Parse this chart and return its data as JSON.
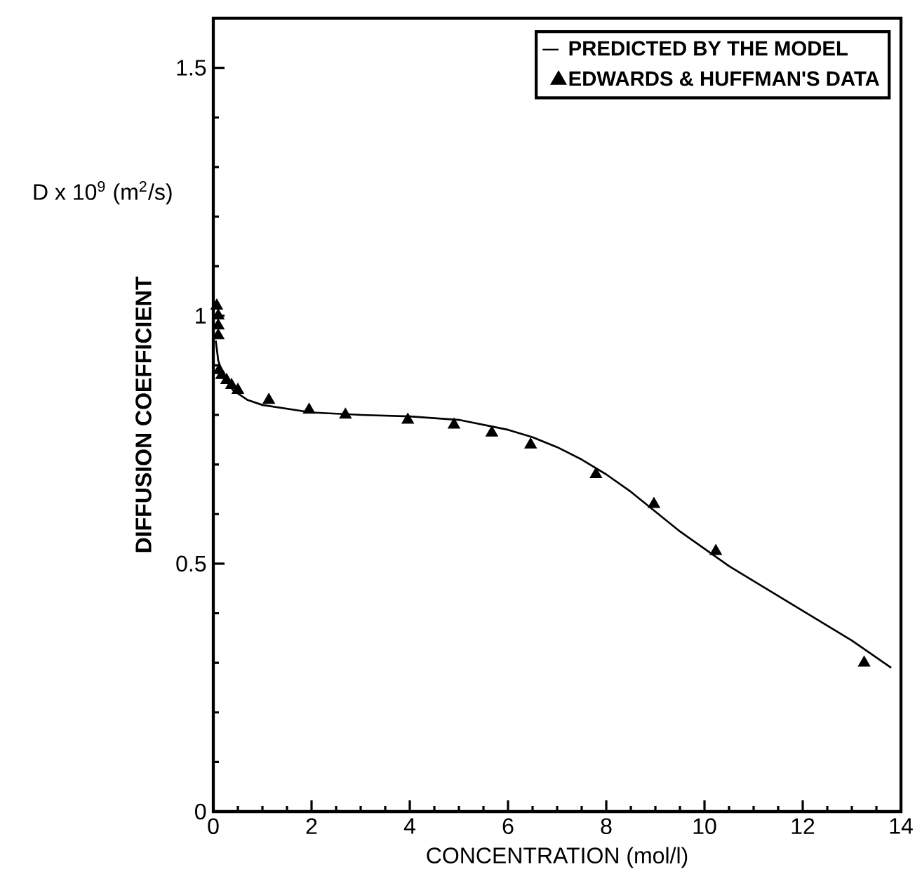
{
  "chart_data": {
    "type": "line",
    "xlabel": "CONCENTRATION   (mol/l)",
    "ylabel": "DIFFUSION COEFFICIENT",
    "annotations": [
      "D x 10$^{9}$ (m$^{2}$/s)"
    ],
    "xlim": [
      0,
      14
    ],
    "ylim": [
      0,
      1.6
    ],
    "xticks": [
      0,
      2,
      4,
      6,
      8,
      10,
      12,
      14
    ],
    "yticks": [
      0,
      0.5,
      1,
      1.5
    ],
    "legend": "top right",
    "grid": false,
    "series": [
      {
        "name": "PREDICTED BY THE MODEL",
        "marker": "none",
        "color": "#000000",
        "x": [
          0.05,
          0.1,
          0.2,
          0.4,
          0.7,
          1,
          2,
          3,
          4,
          5,
          6,
          6.5,
          7,
          7.5,
          8,
          8.5,
          9,
          9.5,
          10,
          10.5,
          11,
          12,
          13,
          13.8
        ],
        "values": [
          0.95,
          0.91,
          0.88,
          0.85,
          0.83,
          0.82,
          0.805,
          0.8,
          0.797,
          0.79,
          0.77,
          0.755,
          0.735,
          0.71,
          0.68,
          0.645,
          0.605,
          0.565,
          0.53,
          0.495,
          0.465,
          0.405,
          0.345,
          0.29
        ]
      },
      {
        "name": "EDWARDS & HUFFMAN'S DATA",
        "type": "scatter",
        "marker": "triangle",
        "color": "#000000",
        "x": [
          0.07,
          0.1,
          0.1,
          0.1,
          0.12,
          0.17,
          0.27,
          0.37,
          0.5,
          1.13,
          1.95,
          2.69,
          3.96,
          4.9,
          5.67,
          6.46,
          7.79,
          8.97,
          10.23,
          13.25
        ],
        "values": [
          1.02,
          1.0,
          0.98,
          0.96,
          0.89,
          0.88,
          0.87,
          0.86,
          0.85,
          0.83,
          0.81,
          0.8,
          0.79,
          0.78,
          0.764,
          0.74,
          0.68,
          0.62,
          0.525,
          0.3
        ]
      }
    ]
  }
}
